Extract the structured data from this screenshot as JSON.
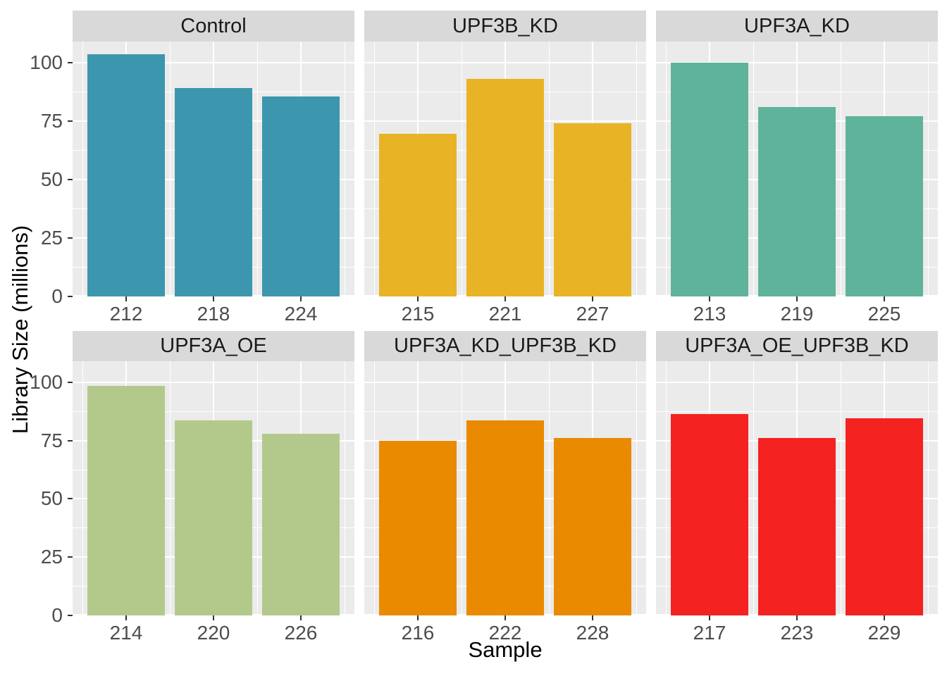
{
  "figure": {
    "x_axis_title": "Sample",
    "y_axis_title": "Library Size (millions)"
  },
  "chart_data": {
    "type": "bar",
    "faceted": true,
    "facet_rows": 2,
    "facet_cols": 3,
    "title": "",
    "xlabel": "Sample",
    "ylabel": "Library Size (millions)",
    "ylim": [
      0,
      109
    ],
    "yticks": [
      0,
      25,
      50,
      75,
      100
    ],
    "yminor": [
      12.5,
      37.5,
      62.5,
      87.5
    ],
    "grid": "white major and minor gridlines on gray panel",
    "legend_position": "none",
    "facets": [
      {
        "label": "Control",
        "color": "#3C97AE",
        "categories": [
          "212",
          "218",
          "224"
        ],
        "values": [
          103.5,
          89,
          85.5
        ]
      },
      {
        "label": "UPF3B_KD",
        "color": "#E8B425",
        "categories": [
          "215",
          "221",
          "227"
        ],
        "values": [
          69.5,
          93,
          74
        ]
      },
      {
        "label": "UPF3A_KD",
        "color": "#5FB39A",
        "categories": [
          "213",
          "219",
          "225"
        ],
        "values": [
          100,
          81,
          77
        ]
      },
      {
        "label": "UPF3A_OE",
        "color": "#B3C98C",
        "categories": [
          "214",
          "220",
          "226"
        ],
        "values": [
          98.5,
          83.5,
          78
        ]
      },
      {
        "label": "UPF3A_KD_UPF3B_KD",
        "color": "#E98A00",
        "categories": [
          "216",
          "222",
          "228"
        ],
        "values": [
          75,
          83.5,
          76
        ]
      },
      {
        "label": "UPF3A_OE_UPF3B_KD",
        "color": "#F42220",
        "categories": [
          "217",
          "223",
          "229"
        ],
        "values": [
          86.5,
          76,
          84.5
        ]
      }
    ]
  },
  "style": {
    "panel_background": "#EBEBEB",
    "strip_background": "#D9D9D9",
    "gridline_color": "#FFFFFF",
    "tick_mark_color": "#333333",
    "tick_label_color": "#4D4D4D",
    "strip_text_color": "#1A1A1A",
    "axis_title_color": "#000000"
  }
}
